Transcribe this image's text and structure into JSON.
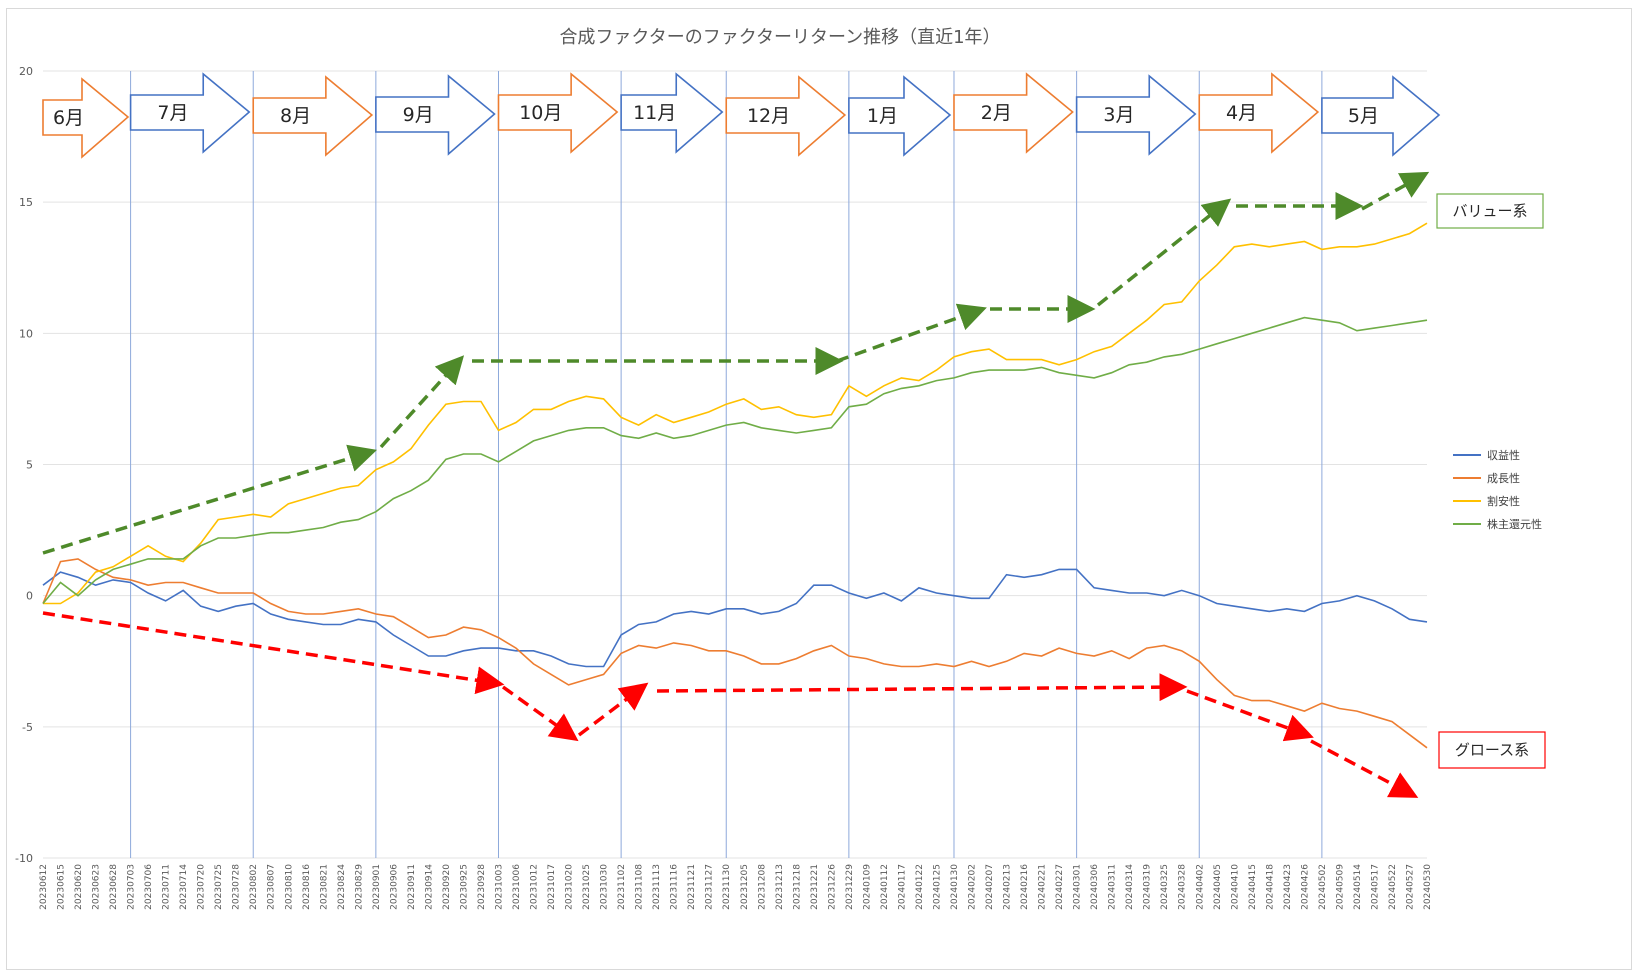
{
  "chart_data": {
    "type": "line",
    "title": "合成ファクターのファクターリターン推移（直近1年）",
    "ylim": [
      -10,
      20
    ],
    "yticks": [
      -10,
      -5,
      0,
      5,
      10,
      15,
      20
    ],
    "grid": true,
    "legend_position": "right",
    "x_tick_labels": [
      "20230612",
      "20230615",
      "20230620",
      "20230623",
      "20230628",
      "20230703",
      "20230706",
      "20230711",
      "20230714",
      "20230720",
      "20230725",
      "20230728",
      "20230802",
      "20230807",
      "20230810",
      "20230816",
      "20230821",
      "20230824",
      "20230829",
      "20230901",
      "20230906",
      "20230911",
      "20230914",
      "20230920",
      "20230925",
      "20230928",
      "20231003",
      "20231006",
      "20231012",
      "20231017",
      "20231020",
      "20231025",
      "20231030",
      "20231102",
      "20231108",
      "20231113",
      "20231116",
      "20231121",
      "20231127",
      "20231130",
      "20231205",
      "20231208",
      "20231213",
      "20231218",
      "20231221",
      "20231226",
      "20231229",
      "20240109",
      "20240112",
      "20240117",
      "20240122",
      "20240125",
      "20240130",
      "20240202",
      "20240207",
      "20240213",
      "20240216",
      "20240221",
      "20240227",
      "20240301",
      "20240306",
      "20240311",
      "20240314",
      "20240319",
      "20240325",
      "20240328",
      "20240402",
      "20240405",
      "20240410",
      "20240415",
      "20240418",
      "20240423",
      "20240426",
      "20240502",
      "20240509",
      "20240514",
      "20240517",
      "20240522",
      "20240527",
      "20240530"
    ],
    "series": [
      {
        "name": "収益性",
        "color": "#4472C4",
        "values": [
          0.4,
          0.9,
          0.7,
          0.4,
          0.6,
          0.5,
          0.1,
          -0.2,
          0.2,
          -0.4,
          -0.6,
          -0.4,
          -0.3,
          -0.7,
          -0.9,
          -1.0,
          -1.1,
          -1.1,
          -0.9,
          -1.0,
          -1.5,
          -1.9,
          -2.3,
          -2.3,
          -2.1,
          -2.0,
          -2.0,
          -2.1,
          -2.1,
          -2.3,
          -2.6,
          -2.7,
          -2.7,
          -1.5,
          -1.1,
          -1.0,
          -0.7,
          -0.6,
          -0.7,
          -0.5,
          -0.5,
          -0.7,
          -0.6,
          -0.3,
          0.4,
          0.4,
          0.1,
          -0.1,
          0.1,
          -0.2,
          0.3,
          0.1,
          0.0,
          -0.1,
          -0.1,
          0.8,
          0.7,
          0.8,
          1.0,
          1.0,
          0.3,
          0.2,
          0.1,
          0.1,
          0.0,
          0.2,
          0.0,
          -0.3,
          -0.4,
          -0.5,
          -0.6,
          -0.5,
          -0.6,
          -0.3,
          -0.2,
          0.0,
          -0.2,
          -0.5,
          -0.9,
          -1.0
        ]
      },
      {
        "name": "成長性",
        "color": "#ED7D31",
        "values": [
          -0.3,
          1.3,
          1.4,
          1.0,
          0.7,
          0.6,
          0.4,
          0.5,
          0.5,
          0.3,
          0.1,
          0.1,
          0.1,
          -0.3,
          -0.6,
          -0.7,
          -0.7,
          -0.6,
          -0.5,
          -0.7,
          -0.8,
          -1.2,
          -1.6,
          -1.5,
          -1.2,
          -1.3,
          -1.6,
          -2.0,
          -2.6,
          -3.0,
          -3.4,
          -3.2,
          -3.0,
          -2.2,
          -1.9,
          -2.0,
          -1.8,
          -1.9,
          -2.1,
          -2.1,
          -2.3,
          -2.6,
          -2.6,
          -2.4,
          -2.1,
          -1.9,
          -2.3,
          -2.4,
          -2.6,
          -2.7,
          -2.7,
          -2.6,
          -2.7,
          -2.5,
          -2.7,
          -2.5,
          -2.2,
          -2.3,
          -2.0,
          -2.2,
          -2.3,
          -2.1,
          -2.4,
          -2.0,
          -1.9,
          -2.1,
          -2.5,
          -3.2,
          -3.8,
          -4.0,
          -4.0,
          -4.2,
          -4.4,
          -4.1,
          -4.3,
          -4.4,
          -4.6,
          -4.8,
          -5.3,
          -5.8
        ]
      },
      {
        "name": "割安性",
        "color": "#FFC000",
        "values": [
          -0.3,
          -0.3,
          0.1,
          0.9,
          1.1,
          1.5,
          1.9,
          1.5,
          1.3,
          2.0,
          2.9,
          3.0,
          3.1,
          3.0,
          3.5,
          3.7,
          3.9,
          4.1,
          4.2,
          4.8,
          5.1,
          5.6,
          6.5,
          7.3,
          7.4,
          7.4,
          6.3,
          6.6,
          7.1,
          7.1,
          7.4,
          7.6,
          7.5,
          6.8,
          6.5,
          6.9,
          6.6,
          6.8,
          7.0,
          7.3,
          7.5,
          7.1,
          7.2,
          6.9,
          6.8,
          6.9,
          8.0,
          7.6,
          8.0,
          8.3,
          8.2,
          8.6,
          9.1,
          9.3,
          9.4,
          9.0,
          9.0,
          9.0,
          8.8,
          9.0,
          9.3,
          9.5,
          10.0,
          10.5,
          11.1,
          11.2,
          12.0,
          12.6,
          13.3,
          13.4,
          13.3,
          13.4,
          13.5,
          13.2,
          13.3,
          13.3,
          13.4,
          13.6,
          13.8,
          14.2
        ]
      },
      {
        "name": "株主還元性",
        "color": "#70AD47",
        "values": [
          -0.3,
          0.5,
          0.0,
          0.6,
          1.0,
          1.2,
          1.4,
          1.4,
          1.4,
          1.9,
          2.2,
          2.2,
          2.3,
          2.4,
          2.4,
          2.5,
          2.6,
          2.8,
          2.9,
          3.2,
          3.7,
          4.0,
          4.4,
          5.2,
          5.4,
          5.4,
          5.1,
          5.5,
          5.9,
          6.1,
          6.3,
          6.4,
          6.4,
          6.1,
          6.0,
          6.2,
          6.0,
          6.1,
          6.3,
          6.5,
          6.6,
          6.4,
          6.3,
          6.2,
          6.3,
          6.4,
          7.2,
          7.3,
          7.7,
          7.9,
          8.0,
          8.2,
          8.3,
          8.5,
          8.6,
          8.6,
          8.6,
          8.7,
          8.5,
          8.4,
          8.3,
          8.5,
          8.8,
          8.9,
          9.1,
          9.2,
          9.4,
          9.6,
          9.8,
          10.0,
          10.2,
          10.4,
          10.6,
          10.5,
          10.4,
          10.1,
          10.2,
          10.3,
          10.4,
          10.5
        ]
      }
    ],
    "month_labels": [
      "6月",
      "7月",
      "8月",
      "9月",
      "10月",
      "11月",
      "12月",
      "1月",
      "2月",
      "3月",
      "4月",
      "5月"
    ],
    "annotations": {
      "value_label": "バリュー系",
      "growth_label": "グロース系"
    }
  }
}
